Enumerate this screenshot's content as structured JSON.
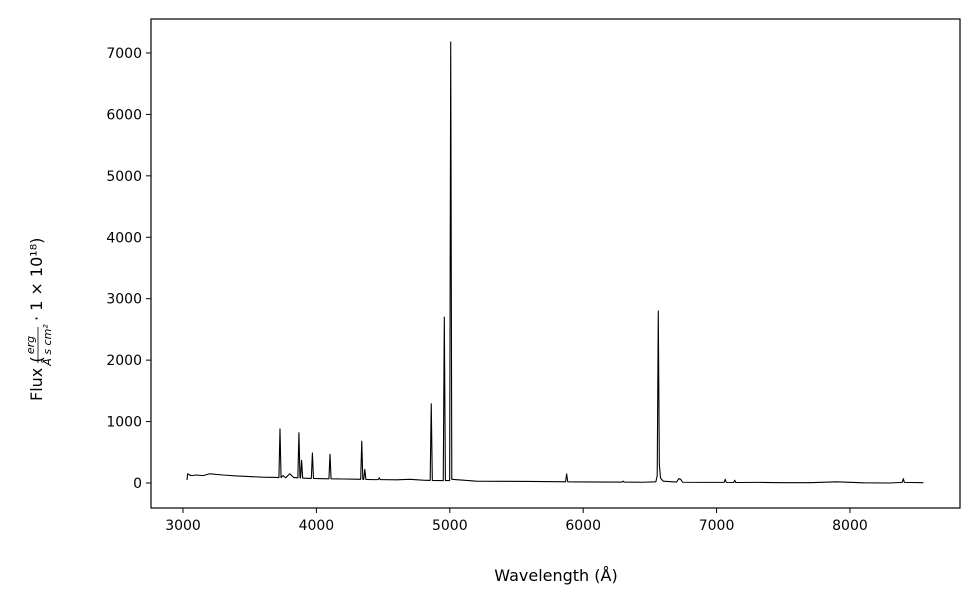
{
  "chart_data": {
    "type": "line",
    "xlabel": "Wavelength (Å)",
    "ylabel": {
      "text": "Flux (",
      "unit_numerator": "erg",
      "unit_denominator": "Å s cm²",
      "factor": "· 1 × 10¹⁸)"
    },
    "x": [
      3030,
      3035,
      3060,
      3100,
      3150,
      3200,
      3300,
      3400,
      3500,
      3600,
      3700,
      3719,
      3727,
      3735,
      3750,
      3770,
      3800,
      3830,
      3861,
      3869,
      3877,
      3881,
      3889,
      3897,
      3950,
      3962,
      3970,
      3978,
      4050,
      4094,
      4102,
      4110,
      4200,
      4300,
      4332,
      4340,
      4348,
      4355,
      4363,
      4371,
      4420,
      4463,
      4471,
      4479,
      4600,
      4700,
      4800,
      4853,
      4861,
      4869,
      4920,
      4951,
      4959,
      4967,
      4999,
      5007,
      5015,
      5200,
      5400,
      5600,
      5800,
      5868,
      5876,
      5884,
      6000,
      6200,
      6292,
      6300,
      6308,
      6450,
      6545,
      6555,
      6563,
      6571,
      6580,
      6600,
      6700,
      6717,
      6731,
      6745,
      6900,
      7057,
      7065,
      7073,
      7128,
      7136,
      7144,
      7300,
      7500,
      7700,
      7900,
      8100,
      8300,
      8392,
      8400,
      8408,
      8550
    ],
    "values": [
      50,
      150,
      120,
      130,
      120,
      150,
      130,
      115,
      105,
      95,
      90,
      88,
      880,
      88,
      120,
      85,
      150,
      90,
      85,
      820,
      85,
      80,
      370,
      80,
      75,
      75,
      490,
      75,
      70,
      68,
      470,
      68,
      65,
      62,
      60,
      680,
      60,
      60,
      220,
      58,
      55,
      55,
      85,
      55,
      52,
      60,
      45,
      42,
      1290,
      42,
      40,
      40,
      2700,
      40,
      40,
      7180,
      60,
      30,
      28,
      25,
      22,
      20,
      150,
      20,
      18,
      15,
      15,
      30,
      15,
      12,
      20,
      120,
      2800,
      300,
      80,
      30,
      15,
      70,
      60,
      12,
      10,
      10,
      60,
      10,
      8,
      45,
      8,
      10,
      5,
      5,
      20,
      3,
      0,
      10,
      70,
      10,
      5
    ],
    "color": "#000000",
    "xlim": [
      2760,
      8825
    ],
    "ylim": [
      -407,
      7553
    ],
    "xticks": [
      3000,
      4000,
      5000,
      6000,
      7000,
      8000
    ],
    "yticks": [
      0,
      1000,
      2000,
      3000,
      4000,
      5000,
      6000,
      7000
    ]
  }
}
